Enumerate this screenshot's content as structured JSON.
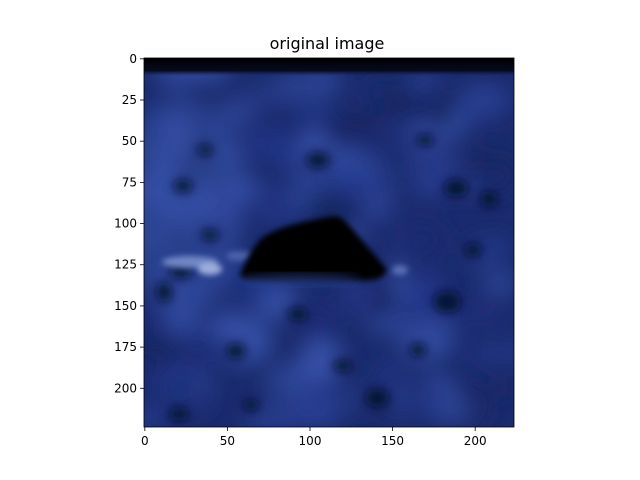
{
  "figure": {
    "title": "original image"
  },
  "image": {
    "width": 224,
    "height": 224,
    "content": "dark blue textured surface with a black mound-shaped object near the center"
  },
  "axes": {
    "x_ticks": [
      "0",
      "50",
      "100",
      "150",
      "200"
    ],
    "y_ticks": [
      "0",
      "25",
      "50",
      "75",
      "100",
      "125",
      "150",
      "175",
      "200"
    ]
  },
  "colors": {
    "background_dark": "#1a2a6c",
    "background_mid": "#22357f",
    "highlight": "#8fa3d8",
    "object": "#000000",
    "top_band": "#000000"
  }
}
